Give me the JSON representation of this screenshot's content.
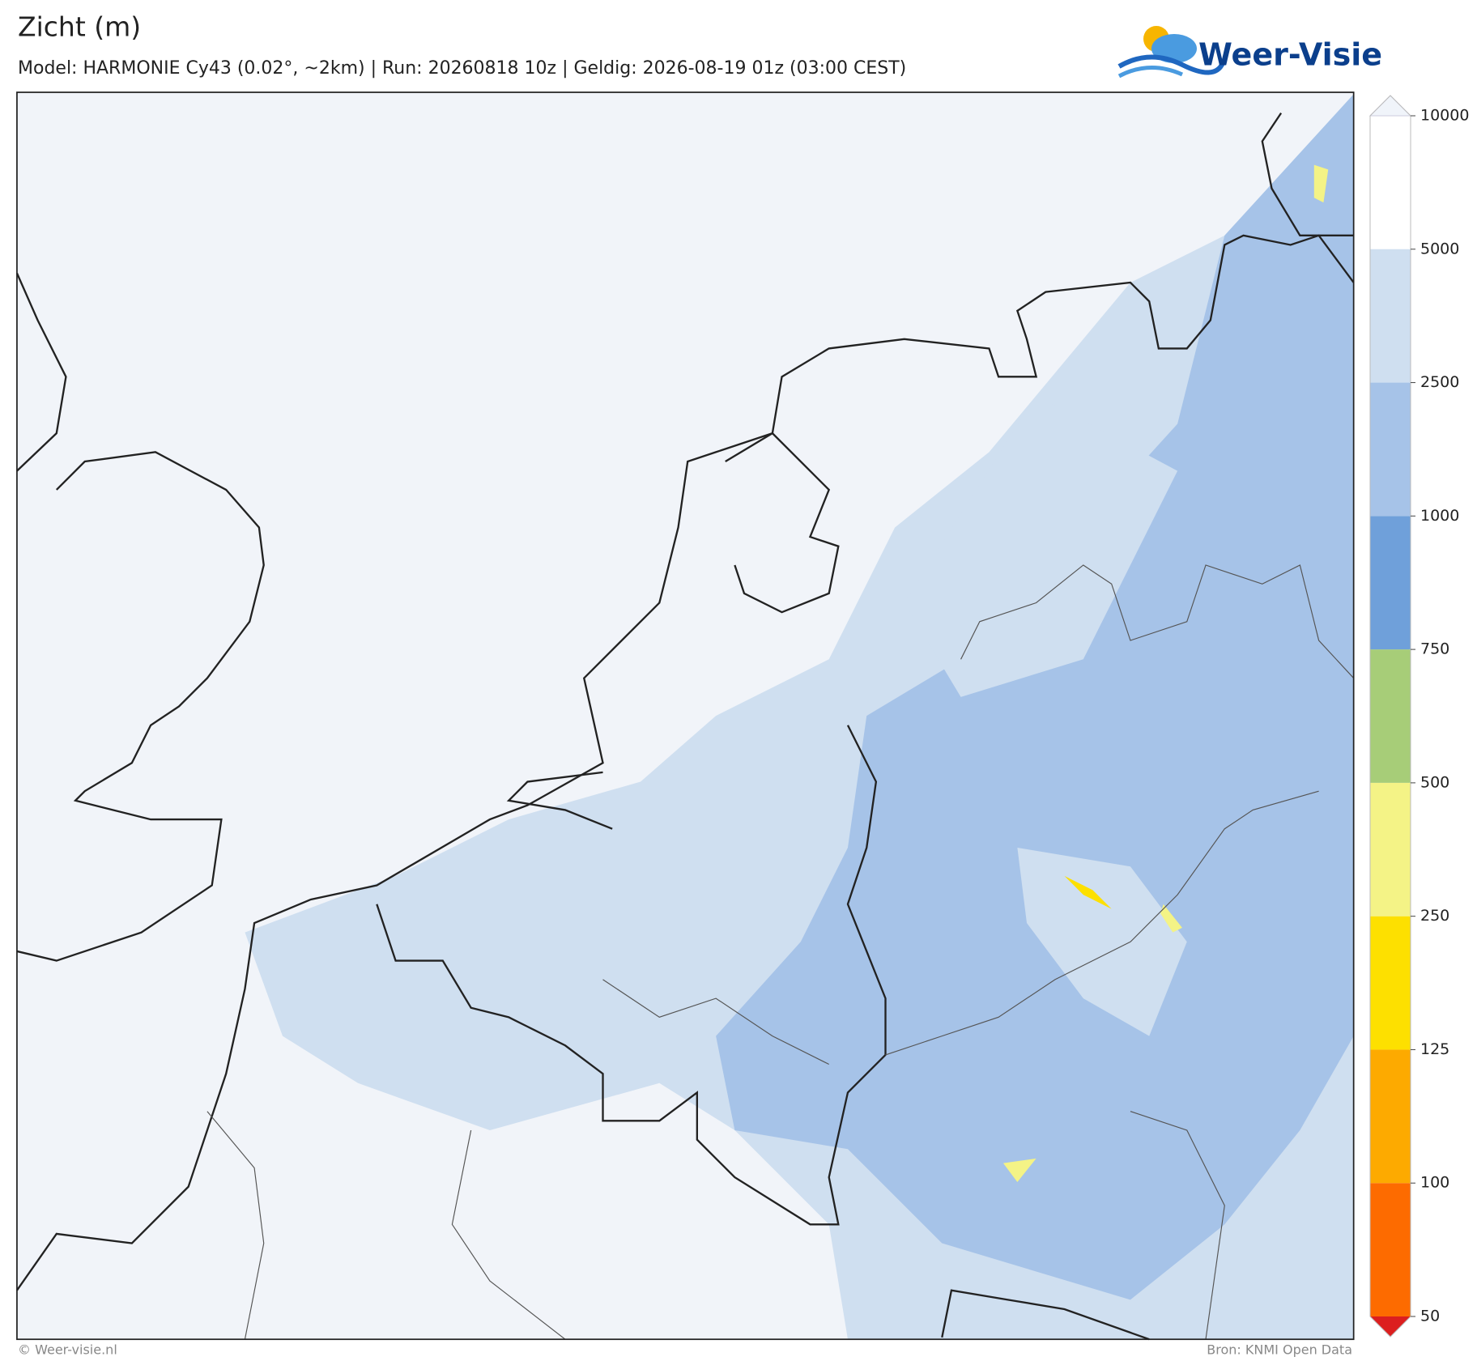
{
  "header": {
    "title": "Zicht (m)",
    "subtitle": "Model: HARMONIE Cy43 (0.02°, ~2km)  |  Run: 20260818 10z  |  Geldig: 2026-08-19 01z (03:00 CEST)",
    "logo": "Weer-Visie"
  },
  "colorbar": {
    "levels": [
      50,
      100,
      125,
      250,
      500,
      750,
      1000,
      2500,
      5000,
      10000
    ],
    "colors": [
      "#dc1f1f",
      "#fd6b00",
      "#fdaa00",
      "#fde000",
      "#f4f386",
      "#a7cd78",
      "#6fa0da",
      "#a6c3e8",
      "#cfdff0",
      "#f0f4fa"
    ]
  },
  "footer": {
    "left": "© Weer-visie.nl",
    "right": "Bron: KNMI Open Data"
  }
}
